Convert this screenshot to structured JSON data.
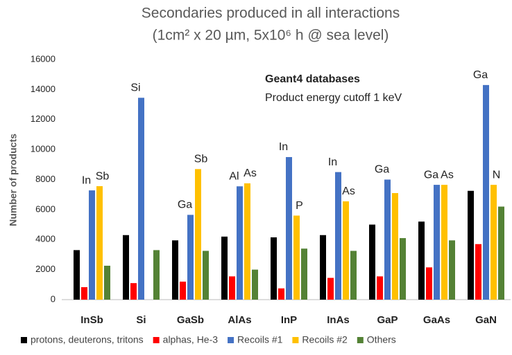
{
  "chart_data": {
    "type": "bar",
    "title": "Secondaries produced in all interactions",
    "subtitle": "(1cm² x 20 µm, 5x10⁶ h @ sea level)",
    "y_label": "Number of products",
    "annotations": [
      "Geant4 databases",
      "Product energy cutoff 1 keV"
    ],
    "categories": [
      "InSb",
      "Si",
      "GaSb",
      "AlAs",
      "InP",
      "InAs",
      "GaP",
      "GaAs",
      "GaN"
    ],
    "series": [
      {
        "name": "protons, deuterons, tritons",
        "color": "#000000",
        "values": [
          3300,
          4300,
          3950,
          4200,
          4150,
          4300,
          5000,
          5200,
          7250
        ]
      },
      {
        "name": "alphas, He-3",
        "color": "#ff0000",
        "values": [
          830,
          1100,
          1200,
          1550,
          750,
          1450,
          1550,
          2150,
          3700
        ]
      },
      {
        "name": "Recoils #1",
        "color": "#4472c4",
        "values": [
          7280,
          13450,
          5650,
          7550,
          9500,
          8500,
          8000,
          7650,
          14300
        ],
        "labels": [
          "In",
          "Si",
          "Ga",
          "Al",
          "In",
          "In",
          "Ga",
          "Ga",
          "Ga"
        ]
      },
      {
        "name": "Recoils #2",
        "color": "#ffc000",
        "values": [
          7560,
          null,
          8700,
          7750,
          5600,
          6550,
          7100,
          7650,
          7650
        ],
        "labels": [
          "Sb",
          null,
          "Sb",
          "As",
          "P",
          "As",
          null,
          "As",
          "N"
        ]
      },
      {
        "name": "Others",
        "color": "#548235",
        "values": [
          2260,
          3300,
          3250,
          2000,
          3400,
          3250,
          4100,
          3950,
          6200
        ]
      }
    ],
    "ylim": [
      0,
      16000
    ],
    "yticks": [
      0,
      2000,
      4000,
      6000,
      8000,
      10000,
      12000,
      14000,
      16000
    ],
    "grid": false
  }
}
